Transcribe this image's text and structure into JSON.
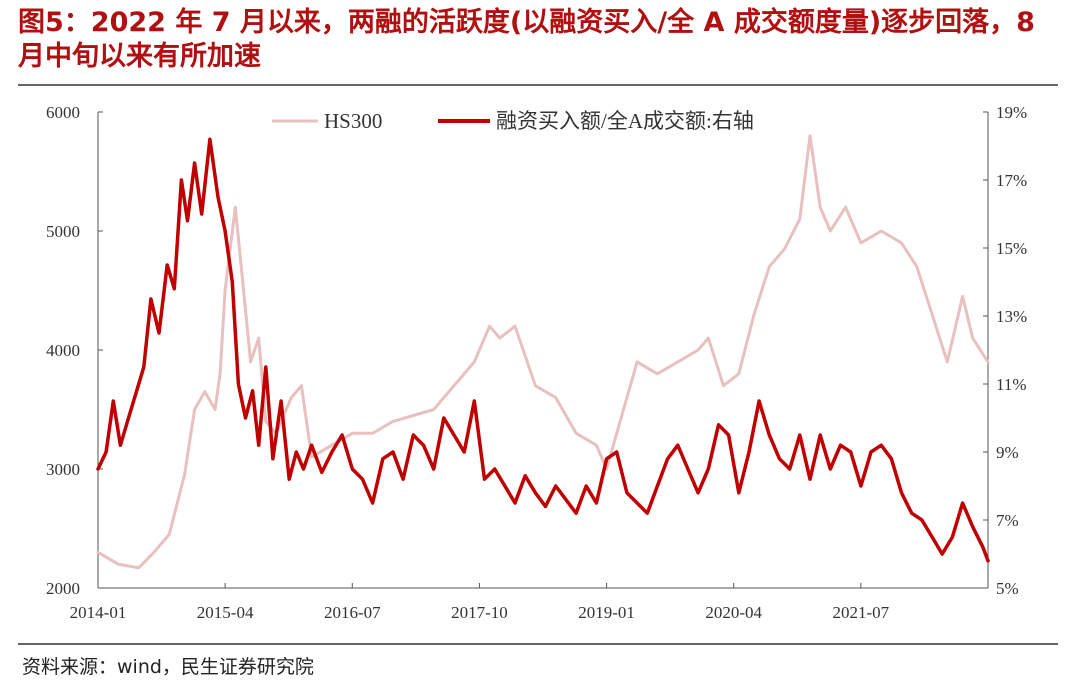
{
  "header": {
    "title": "图5：2022 年 7 月以来，两融的活跃度(以融资买入/全 A 成交额度量)逐步回落，8 月中旬以来有所加速"
  },
  "footer": {
    "source": "资料来源：wind，民生证券研究院"
  },
  "colors": {
    "hs300": "#e8c0c0",
    "margin": "#c00000",
    "title": "#b01010"
  },
  "chart_data": {
    "type": "line",
    "title": "",
    "xlabel": "",
    "ylabel_left": "",
    "ylabel_right": "",
    "x_ticks": [
      "2014-01",
      "2015-04",
      "2016-07",
      "2017-10",
      "2019-01",
      "2020-04",
      "2021-07"
    ],
    "x_range": [
      2014.0,
      2022.75
    ],
    "left_axis": {
      "min": 2000,
      "max": 6000,
      "ticks": [
        "2000",
        "3000",
        "4000",
        "5000",
        "6000"
      ]
    },
    "right_axis": {
      "min": 5,
      "max": 19,
      "ticks": [
        "5%",
        "7%",
        "9%",
        "11%",
        "13%",
        "15%",
        "17%",
        "19%"
      ]
    },
    "series": [
      {
        "name": "HS300",
        "axis": "left",
        "x": [
          2014.0,
          2014.2,
          2014.4,
          2014.55,
          2014.7,
          2014.85,
          2014.95,
          2015.05,
          2015.15,
          2015.2,
          2015.25,
          2015.35,
          2015.42,
          2015.5,
          2015.58,
          2015.65,
          2015.75,
          2015.9,
          2016.0,
          2016.1,
          2016.3,
          2016.5,
          2016.7,
          2016.9,
          2017.1,
          2017.3,
          2017.5,
          2017.7,
          2017.85,
          2017.95,
          2018.1,
          2018.3,
          2018.5,
          2018.7,
          2018.9,
          2019.0,
          2019.1,
          2019.3,
          2019.5,
          2019.7,
          2019.9,
          2020.0,
          2020.15,
          2020.3,
          2020.45,
          2020.6,
          2020.75,
          2020.9,
          2021.0,
          2021.1,
          2021.2,
          2021.35,
          2021.5,
          2021.7,
          2021.9,
          2022.05,
          2022.2,
          2022.35,
          2022.5,
          2022.6,
          2022.75
        ],
        "values": [
          2300,
          2200,
          2170,
          2300,
          2450,
          2950,
          3500,
          3650,
          3500,
          3800,
          4500,
          5200,
          4600,
          3900,
          4100,
          3400,
          3300,
          3600,
          3700,
          3100,
          3200,
          3300,
          3300,
          3400,
          3450,
          3500,
          3700,
          3900,
          4200,
          4100,
          4200,
          3700,
          3600,
          3300,
          3200,
          3000,
          3300,
          3900,
          3800,
          3900,
          4000,
          4100,
          3700,
          3800,
          4300,
          4700,
          4850,
          5100,
          5800,
          5200,
          5000,
          5200,
          4900,
          5000,
          4900,
          4700,
          4300,
          3900,
          4450,
          4100,
          3900
        ]
      },
      {
        "name": "融资买入额/全A成交额:右轴",
        "axis": "right",
        "x": [
          2014.0,
          2014.08,
          2014.15,
          2014.22,
          2014.3,
          2014.38,
          2014.45,
          2014.52,
          2014.6,
          2014.68,
          2014.75,
          2014.82,
          2014.88,
          2014.95,
          2015.02,
          2015.1,
          2015.18,
          2015.25,
          2015.32,
          2015.38,
          2015.45,
          2015.52,
          2015.58,
          2015.65,
          2015.72,
          2015.8,
          2015.88,
          2015.95,
          2016.02,
          2016.1,
          2016.2,
          2016.3,
          2016.4,
          2016.5,
          2016.6,
          2016.7,
          2016.8,
          2016.9,
          2017.0,
          2017.1,
          2017.2,
          2017.3,
          2017.4,
          2017.5,
          2017.6,
          2017.7,
          2017.8,
          2017.9,
          2018.0,
          2018.1,
          2018.2,
          2018.3,
          2018.4,
          2018.5,
          2018.6,
          2018.7,
          2018.8,
          2018.9,
          2019.0,
          2019.1,
          2019.2,
          2019.3,
          2019.4,
          2019.5,
          2019.6,
          2019.7,
          2019.8,
          2019.9,
          2020.0,
          2020.1,
          2020.2,
          2020.3,
          2020.4,
          2020.5,
          2020.6,
          2020.7,
          2020.8,
          2020.9,
          2021.0,
          2021.1,
          2021.2,
          2021.3,
          2021.4,
          2021.5,
          2021.6,
          2021.7,
          2021.8,
          2021.9,
          2022.0,
          2022.1,
          2022.2,
          2022.3,
          2022.4,
          2022.5,
          2022.6,
          2022.7,
          2022.75
        ],
        "values": [
          8.5,
          9.0,
          10.5,
          9.2,
          10.0,
          10.8,
          11.5,
          13.5,
          12.5,
          14.5,
          13.8,
          17.0,
          15.8,
          17.5,
          16.0,
          18.2,
          16.5,
          15.5,
          14.0,
          11.0,
          10.0,
          10.8,
          9.2,
          11.5,
          8.8,
          10.5,
          8.2,
          9.0,
          8.5,
          9.2,
          8.4,
          9.0,
          9.5,
          8.5,
          8.2,
          7.5,
          8.8,
          9.0,
          8.2,
          9.5,
          9.2,
          8.5,
          10.0,
          9.5,
          9.0,
          10.5,
          8.2,
          8.5,
          8.0,
          7.5,
          8.3,
          7.8,
          7.4,
          8.0,
          7.6,
          7.2,
          8.0,
          7.5,
          8.8,
          9.0,
          7.8,
          7.5,
          7.2,
          8.0,
          8.8,
          9.2,
          8.5,
          7.8,
          8.5,
          9.8,
          9.5,
          7.8,
          9.0,
          10.5,
          9.5,
          8.8,
          8.5,
          9.5,
          8.2,
          9.5,
          8.5,
          9.2,
          9.0,
          8.0,
          9.0,
          9.2,
          8.8,
          7.8,
          7.2,
          7.0,
          6.5,
          6.0,
          6.5,
          7.5,
          6.8,
          6.2,
          5.8
        ]
      }
    ],
    "legend": "top-center",
    "grid": false
  }
}
